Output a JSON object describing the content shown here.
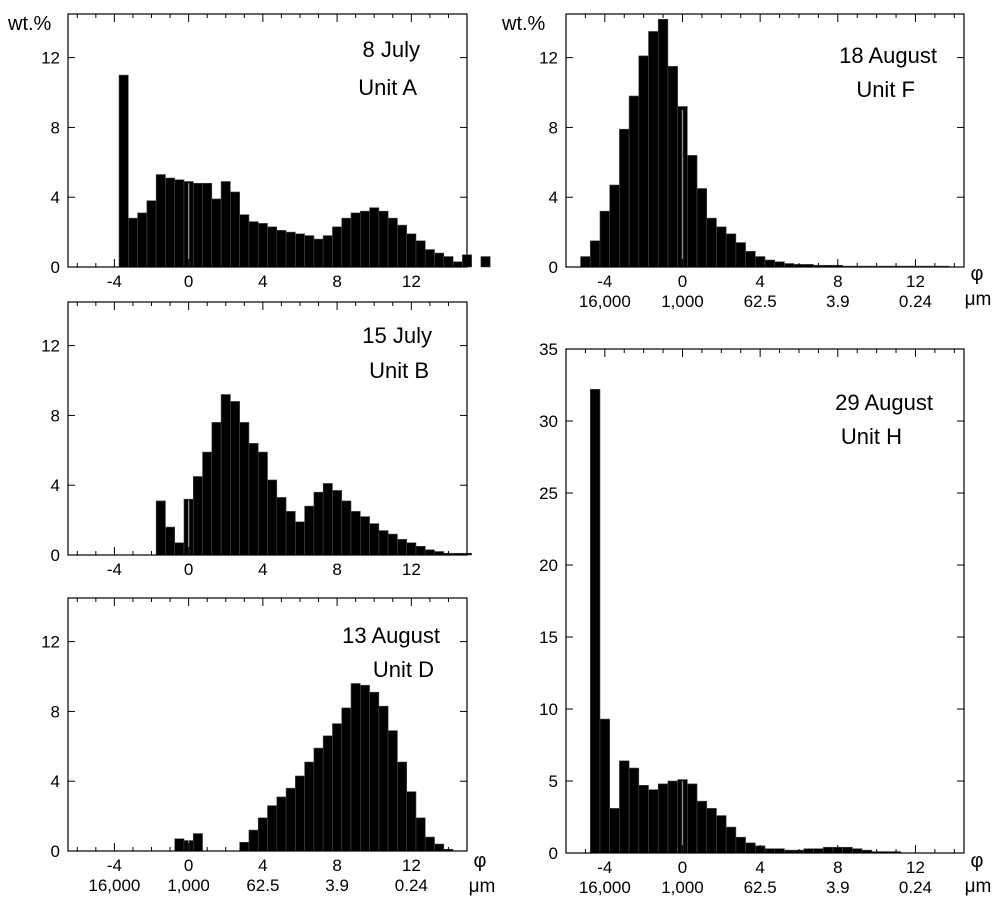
{
  "chart_data": [
    {
      "type": "bar",
      "title": "8 July",
      "subtitle": "Unit A",
      "ylabel": "wt.%",
      "xunit": "",
      "size_unit": "",
      "xlim": [
        -6.5,
        15
      ],
      "ylim": [
        0,
        14.5
      ],
      "xticks": [
        -4,
        0,
        4,
        8,
        12
      ],
      "yticks": [
        0,
        4,
        8,
        12
      ],
      "size_ticks": [],
      "bin_width": 0.5,
      "bin_start": -3.75,
      "values": [
        11.0,
        2.8,
        3.1,
        3.8,
        5.3,
        5.1,
        5.0,
        4.9,
        4.8,
        4.8,
        3.9,
        4.9,
        4.3,
        3.0,
        2.6,
        2.5,
        2.3,
        2.1,
        2.0,
        1.9,
        1.8,
        1.6,
        1.8,
        2.3,
        2.8,
        3.1,
        3.2,
        3.4,
        3.2,
        2.8,
        2.4,
        1.9,
        1.5,
        1.0,
        0.8,
        0.6,
        0.3,
        0.7,
        0.0,
        0.6
      ]
    },
    {
      "type": "bar",
      "title": "15 July",
      "subtitle": "Unit B",
      "ylabel": "",
      "xunit": "",
      "size_unit": "",
      "xlim": [
        -6.5,
        15
      ],
      "ylim": [
        0,
        14.5
      ],
      "xticks": [
        -4,
        0,
        4,
        8,
        12
      ],
      "yticks": [
        0,
        4,
        8,
        12
      ],
      "size_ticks": [],
      "bin_width": 0.5,
      "bin_start": -1.75,
      "values": [
        3.1,
        1.6,
        0.7,
        3.2,
        4.5,
        5.9,
        7.6,
        9.2,
        8.8,
        7.6,
        6.4,
        5.9,
        4.3,
        3.3,
        2.5,
        1.9,
        2.8,
        3.6,
        4.1,
        3.7,
        3.1,
        2.5,
        2.2,
        1.8,
        1.4,
        1.2,
        0.9,
        0.7,
        0.5,
        0.3,
        0.2,
        0.1,
        0.1,
        0.1
      ]
    },
    {
      "type": "bar",
      "title": "13 August",
      "subtitle": "Unit D",
      "ylabel": "",
      "xunit": "φ",
      "size_unit": "μm",
      "xlim": [
        -6.5,
        15
      ],
      "ylim": [
        0,
        14.5
      ],
      "xticks": [
        -4,
        0,
        4,
        8,
        12
      ],
      "yticks": [
        0,
        4,
        8,
        12
      ],
      "size_ticks": [
        "16,000",
        "1,000",
        "62.5",
        "3.9",
        "0.24"
      ],
      "bin_width": 0.5,
      "bin_start": -0.75,
      "values": [
        0.7,
        0.6,
        1.0,
        0.0,
        0.0,
        0.0,
        0.0,
        0.5,
        1.2,
        1.9,
        2.6,
        3.1,
        3.6,
        4.3,
        5.1,
        5.9,
        6.6,
        7.3,
        8.2,
        9.6,
        9.5,
        9.1,
        8.3,
        6.9,
        5.1,
        3.4,
        1.9,
        0.8,
        0.4,
        0.1
      ]
    },
    {
      "type": "bar",
      "title": "18 August",
      "subtitle": "Unit F",
      "ylabel": "wt.%",
      "xunit": "φ",
      "size_unit": "μm",
      "xlim": [
        -6,
        14.5
      ],
      "ylim": [
        0,
        14.5
      ],
      "xticks": [
        -4,
        0,
        4,
        8,
        12
      ],
      "yticks": [
        0,
        4,
        8,
        12
      ],
      "size_ticks": [
        "16,000",
        "1,000",
        "62.5",
        "3.9",
        "0.24"
      ],
      "bin_width": 0.5,
      "bin_start": -5.25,
      "values": [
        0.6,
        1.5,
        3.2,
        4.7,
        7.9,
        9.8,
        12.1,
        13.5,
        14.2,
        11.5,
        9.2,
        6.4,
        4.5,
        2.8,
        2.3,
        1.9,
        1.4,
        0.9,
        0.6,
        0.4,
        0.3,
        0.2,
        0.15,
        0.15,
        0.1,
        0.1,
        0.1,
        0.05,
        0.05,
        0.05,
        0.05,
        0.05,
        0.05,
        0.05,
        0.05,
        0.05,
        0.05,
        0.05
      ]
    },
    {
      "type": "bar",
      "title": "29 August",
      "subtitle": "Unit H",
      "ylabel": "",
      "xunit": "φ",
      "size_unit": "μm",
      "xlim": [
        -6,
        14.5
      ],
      "ylim": [
        0,
        35
      ],
      "xticks": [
        -4,
        0,
        4,
        8,
        12
      ],
      "yticks": [
        0,
        5,
        10,
        15,
        20,
        25,
        30,
        35
      ],
      "size_ticks": [
        "16,000",
        "1,000",
        "62.5",
        "3.9",
        "0.24"
      ],
      "bin_width": 0.5,
      "bin_start": -4.75,
      "values": [
        32.2,
        9.3,
        3.1,
        6.4,
        5.9,
        4.7,
        4.4,
        4.8,
        5.0,
        5.1,
        4.8,
        3.6,
        3.1,
        2.6,
        1.8,
        1.1,
        0.7,
        0.5,
        0.3,
        0.3,
        0.2,
        0.2,
        0.3,
        0.3,
        0.4,
        0.4,
        0.4,
        0.3,
        0.2,
        0.1,
        0.1,
        0.1
      ]
    }
  ]
}
